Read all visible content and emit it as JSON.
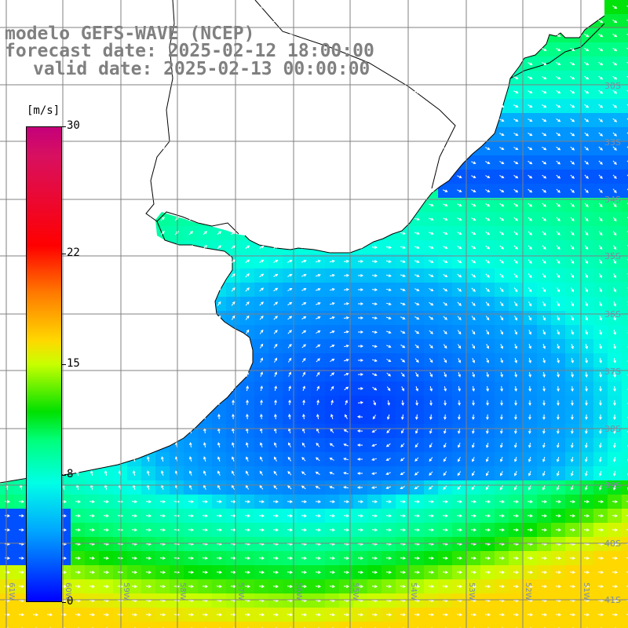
{
  "title": {
    "line1": "modelo GEFS-WAVE (NCEP)",
    "line2": "forecast date: 2025-02-12 18:00:00",
    "line3": "valid date: 2025-02-13 00:00:00"
  },
  "colorbar": {
    "unit": "[m/s]",
    "min": 0,
    "max": 30,
    "ticks": [
      {
        "label": "30",
        "value": 30
      },
      {
        "label": "22",
        "value": 22
      },
      {
        "label": "15",
        "value": 15
      },
      {
        "label": "8",
        "value": 8
      },
      {
        "label": "0",
        "value": 0
      }
    ],
    "colors": {
      "top": "#c4007a",
      "red": "#ff0000",
      "orange": "#ff7a00",
      "yellow": "#ffd800",
      "green": "#00e000",
      "cyan": "#00ffe6",
      "blue": "#0050ff",
      "bottom": "#0000ff"
    }
  },
  "map": {
    "variable": "wind speed",
    "land_color": "#ffffff",
    "coastline_color": "#000000",
    "grid_color": "#808080",
    "arrow_color": "#ffffff",
    "lat_labels": [
      "30S",
      "33S",
      "34S",
      "35S",
      "36S",
      "37S",
      "38S",
      "39S",
      "40S",
      "41S"
    ],
    "lon_labels": [
      "61W",
      "60W",
      "59W",
      "58W",
      "57W",
      "56W",
      "55W",
      "54W",
      "53W",
      "52W",
      "51W"
    ]
  }
}
